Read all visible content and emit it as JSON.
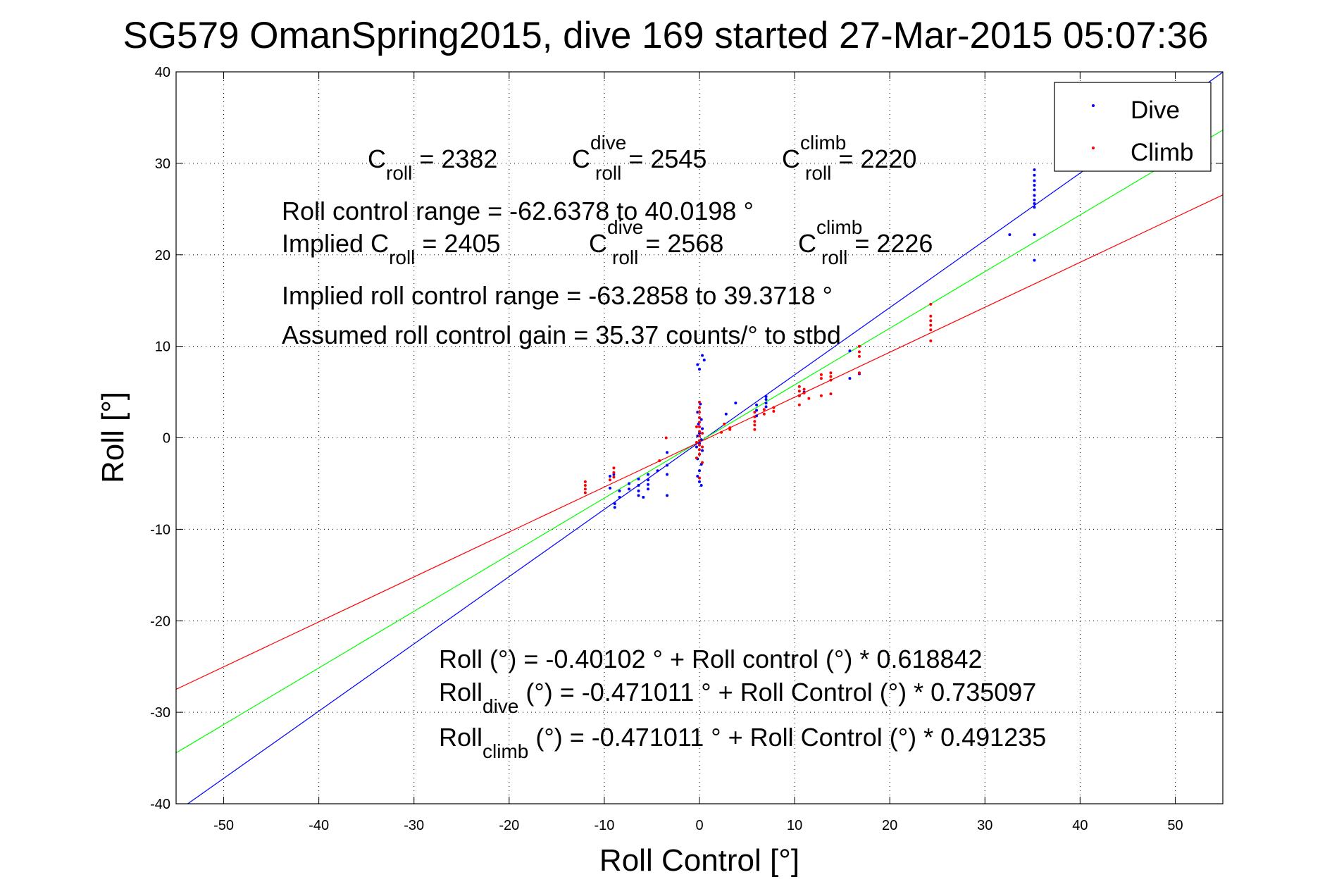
{
  "chart_data": {
    "type": "scatter",
    "title": "SG579 OmanSpring2015, dive 169 started 27-Mar-2015 05:07:36",
    "xlabel": "Roll Control [°]",
    "ylabel": "Roll [°]",
    "xlim": [
      -55,
      55
    ],
    "ylim": [
      -40,
      40
    ],
    "xticks": [
      -50,
      -40,
      -30,
      -20,
      -10,
      0,
      10,
      20,
      30,
      40,
      50
    ],
    "yticks": [
      -40,
      -30,
      -20,
      -10,
      0,
      10,
      20,
      30,
      40
    ],
    "grid": true,
    "legend": {
      "placement": "top-right",
      "entries": [
        "Dive",
        "Climb"
      ]
    },
    "series": [
      {
        "name": "Dive",
        "color": "#0000ff",
        "points": [
          [
            35.2,
            29.3
          ],
          [
            35.2,
            28.7
          ],
          [
            35.2,
            28.1
          ],
          [
            35.2,
            27.6
          ],
          [
            35.2,
            27.1
          ],
          [
            35.2,
            26.5
          ],
          [
            35.2,
            26.0
          ],
          [
            35.2,
            25.6
          ],
          [
            35.2,
            25.2
          ],
          [
            35.2,
            22.2
          ],
          [
            35.2,
            19.4
          ],
          [
            32.6,
            22.2
          ],
          [
            15.8,
            9.5
          ],
          [
            15.8,
            6.5
          ],
          [
            16.8,
            7.0
          ],
          [
            11.0,
            5.0
          ],
          [
            10.5,
            4.6
          ],
          [
            7.0,
            4.5
          ],
          [
            7.0,
            4.2
          ],
          [
            7.0,
            3.8
          ],
          [
            7.0,
            3.4
          ],
          [
            6.0,
            3.6
          ],
          [
            6.0,
            3.0
          ],
          [
            6.0,
            2.4
          ],
          [
            3.8,
            3.8
          ],
          [
            2.8,
            2.6
          ],
          [
            0.3,
            9.0
          ],
          [
            0.5,
            8.5
          ],
          [
            -0.2,
            8.0
          ],
          [
            0.0,
            7.5
          ],
          [
            0.1,
            3.7
          ],
          [
            -0.2,
            2.8
          ],
          [
            0.2,
            2.0
          ],
          [
            -0.1,
            1.5
          ],
          [
            0.3,
            1.0
          ],
          [
            0.0,
            0.5
          ],
          [
            -0.2,
            0.2
          ],
          [
            0.2,
            -0.2
          ],
          [
            0.0,
            -0.6
          ],
          [
            -0.3,
            -1.0
          ],
          [
            0.3,
            -1.4
          ],
          [
            0.0,
            -1.8
          ],
          [
            -0.2,
            -2.3
          ],
          [
            0.2,
            -2.9
          ],
          [
            0.0,
            -3.6
          ],
          [
            -0.2,
            -4.2
          ],
          [
            0.0,
            -4.8
          ],
          [
            0.2,
            -5.2
          ],
          [
            -3.4,
            -1.6
          ],
          [
            -3.4,
            -3.0
          ],
          [
            -3.4,
            -4.0
          ],
          [
            -3.4,
            -6.3
          ],
          [
            -5.4,
            -4.0
          ],
          [
            -5.4,
            -4.6
          ],
          [
            -5.4,
            -5.1
          ],
          [
            -5.4,
            -5.6
          ],
          [
            -4.4,
            -3.6
          ],
          [
            -6.4,
            -4.5
          ],
          [
            -6.4,
            -5.2
          ],
          [
            -6.4,
            -5.8
          ],
          [
            -6.4,
            -6.3
          ],
          [
            -5.9,
            -6.5
          ],
          [
            -7.4,
            -5.0
          ],
          [
            -7.4,
            -5.6
          ],
          [
            -8.4,
            -5.8
          ],
          [
            -8.4,
            -6.5
          ],
          [
            -8.9,
            -7.2
          ],
          [
            -8.9,
            -7.6
          ],
          [
            -9.4,
            -5.5
          ],
          [
            -9.4,
            -4.2
          ],
          [
            -9.0,
            -4.0
          ]
        ]
      },
      {
        "name": "Climb",
        "color": "#ff0000",
        "points": [
          [
            24.3,
            14.6
          ],
          [
            24.3,
            13.3
          ],
          [
            24.3,
            12.8
          ],
          [
            24.3,
            12.3
          ],
          [
            24.3,
            11.8
          ],
          [
            24.3,
            10.6
          ],
          [
            16.8,
            10.0
          ],
          [
            16.8,
            9.4
          ],
          [
            16.8,
            8.9
          ],
          [
            16.8,
            7.1
          ],
          [
            13.8,
            7.1
          ],
          [
            13.8,
            6.7
          ],
          [
            13.8,
            6.3
          ],
          [
            13.8,
            4.8
          ],
          [
            12.8,
            6.9
          ],
          [
            12.8,
            6.5
          ],
          [
            12.8,
            4.6
          ],
          [
            11.0,
            5.3
          ],
          [
            11.0,
            4.9
          ],
          [
            10.5,
            5.6
          ],
          [
            10.5,
            5.1
          ],
          [
            10.5,
            4.6
          ],
          [
            10.5,
            3.6
          ],
          [
            11.5,
            4.3
          ],
          [
            7.8,
            3.3
          ],
          [
            7.8,
            2.9
          ],
          [
            6.8,
            3.1
          ],
          [
            6.8,
            2.6
          ],
          [
            5.8,
            2.8
          ],
          [
            5.8,
            2.3
          ],
          [
            5.8,
            1.8
          ],
          [
            5.8,
            1.4
          ],
          [
            5.8,
            0.9
          ],
          [
            3.2,
            1.1
          ],
          [
            3.2,
            0.9
          ],
          [
            2.6,
            1.5
          ],
          [
            2.3,
            0.6
          ],
          [
            0.0,
            3.9
          ],
          [
            0.0,
            3.3
          ],
          [
            0.0,
            2.8
          ],
          [
            0.0,
            2.2
          ],
          [
            0.0,
            1.7
          ],
          [
            0.0,
            1.2
          ],
          [
            0.0,
            0.7
          ],
          [
            0.0,
            0.2
          ],
          [
            0.0,
            -0.3
          ],
          [
            0.0,
            -0.8
          ],
          [
            0.0,
            -1.3
          ],
          [
            0.0,
            -1.8
          ],
          [
            -0.3,
            1.2
          ],
          [
            0.3,
            0.5
          ],
          [
            -0.3,
            -0.5
          ],
          [
            0.3,
            -1.0
          ],
          [
            -0.3,
            -2.2
          ],
          [
            0.3,
            -2.7
          ],
          [
            0.0,
            -4.4
          ],
          [
            -3.5,
            0.0
          ],
          [
            -4.2,
            -2.5
          ],
          [
            -9.0,
            -3.3
          ],
          [
            -9.0,
            -3.8
          ],
          [
            -9.0,
            -4.3
          ],
          [
            -9.4,
            -4.6
          ],
          [
            -12.0,
            -4.8
          ],
          [
            -12.0,
            -5.2
          ],
          [
            -12.0,
            -5.6
          ],
          [
            -12.0,
            -6.0
          ]
        ]
      }
    ],
    "fit_lines": [
      {
        "color": "#0000ff",
        "intercept": -0.471011,
        "slope": 0.735097
      },
      {
        "color": "#00ff00",
        "intercept": -0.40102,
        "slope": 0.618842
      },
      {
        "color": "#ff0000",
        "intercept": -0.471011,
        "slope": 0.491235
      }
    ],
    "annotations": {
      "c_roll": {
        "main": "C",
        "sub": "roll",
        "value": " = 2382"
      },
      "c_roll_dive": {
        "main": "C",
        "sup": "dive",
        "sub": "roll",
        "value": " = 2545"
      },
      "c_roll_climb": {
        "main": "C",
        "sup": "climb",
        "sub": "roll",
        "value": " = 2220"
      },
      "range": "Roll control range = -62.6378 to 40.0198 °",
      "implied_c_roll": {
        "main": "Implied C",
        "sub": "roll",
        "value": " = 2405"
      },
      "implied_c_roll_dive": {
        "main": "C",
        "sup": "dive",
        "sub": "roll",
        "value": " = 2568"
      },
      "implied_c_roll_climb": {
        "main": "C",
        "sup": "climb",
        "sub": "roll",
        "value": " = 2226"
      },
      "implied_range": "Implied roll control range = -63.2858 to 39.3718 °",
      "gain": "Assumed roll control gain = 35.37 counts/° to stbd",
      "fit_all": "Roll (°) = -0.40102 ° + Roll control (°) * 0.618842",
      "fit_dive": {
        "main": "Roll",
        "sub": "dive",
        "rest": " (°) = -0.471011 ° + Roll Control (°) * 0.735097"
      },
      "fit_climb": {
        "main": "Roll",
        "sub": "climb",
        "rest": " (°) = -0.471011 ° + Roll Control (°) * 0.491235"
      }
    }
  }
}
